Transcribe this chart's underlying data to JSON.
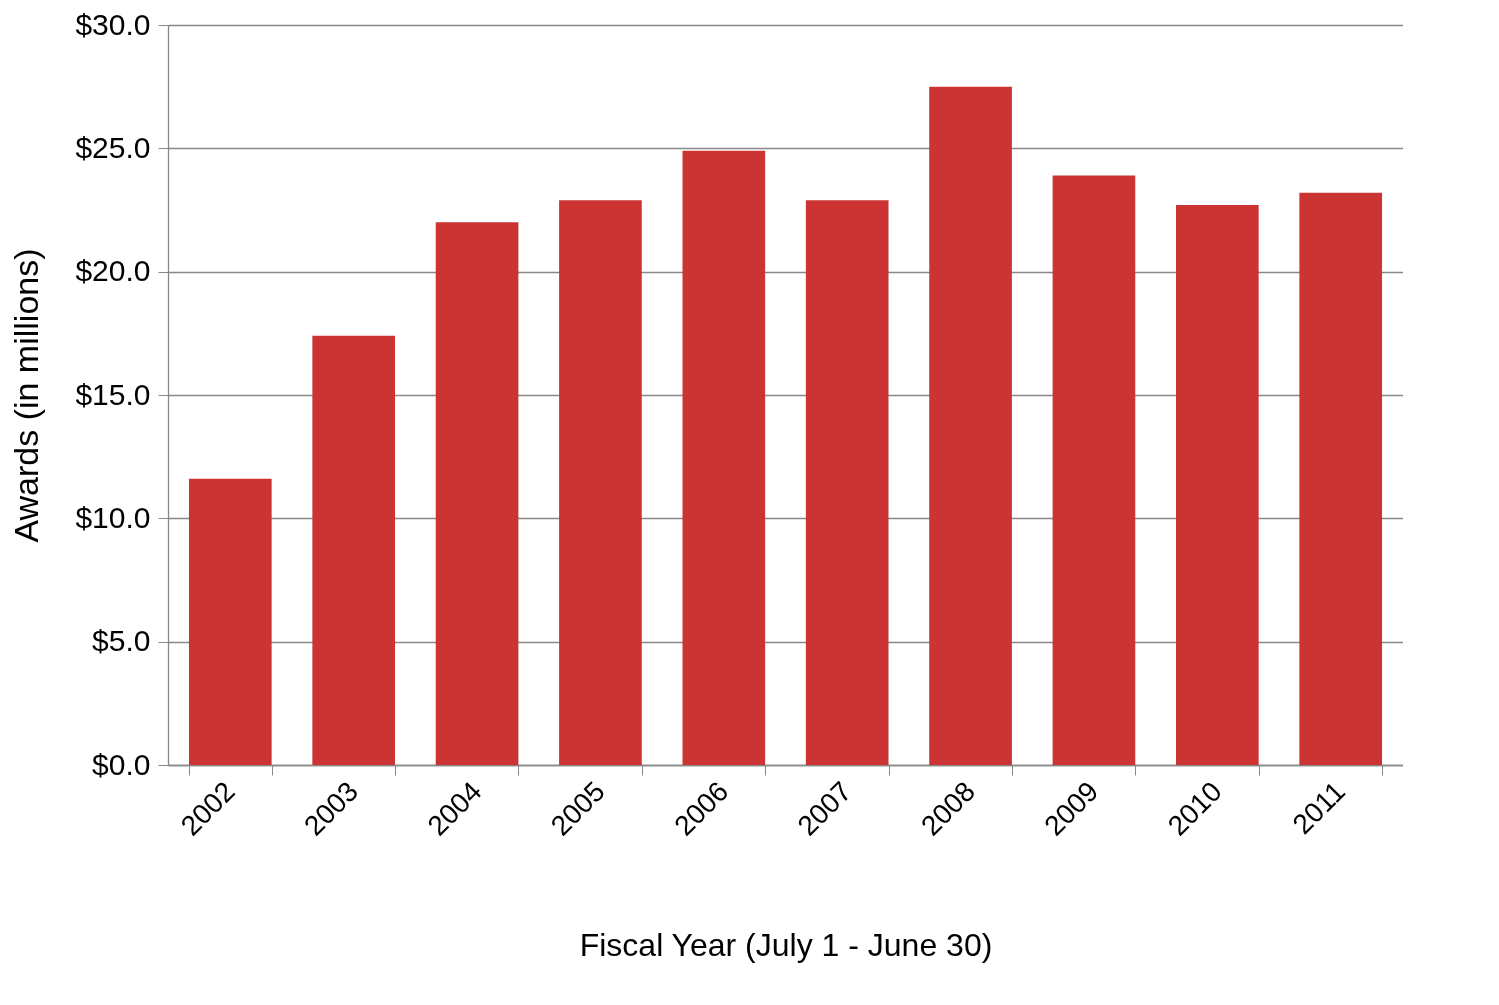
{
  "chart_data": {
    "type": "bar",
    "xlabel": "Fiscal Year (July 1 - June 30)",
    "ylabel": "Awards (in millions)",
    "categories": [
      "2002",
      "2003",
      "2004",
      "2005",
      "2006",
      "2007",
      "2008",
      "2009",
      "2010",
      "2011"
    ],
    "values": [
      11.6,
      17.4,
      22.0,
      22.9,
      24.9,
      22.9,
      27.5,
      23.9,
      22.7,
      23.2
    ],
    "color": "#cc3333",
    "ylim": [
      0,
      30
    ],
    "yticks": [
      {
        "value": 0,
        "label": "$0.0"
      },
      {
        "value": 5,
        "label": "$5.0"
      },
      {
        "value": 10,
        "label": "$10.0"
      },
      {
        "value": 15,
        "label": "$15.0"
      },
      {
        "value": 20,
        "label": "$20.0"
      },
      {
        "value": 25,
        "label": "$25.0"
      },
      {
        "value": 30,
        "label": "$30.0"
      }
    ],
    "grid": "y"
  }
}
